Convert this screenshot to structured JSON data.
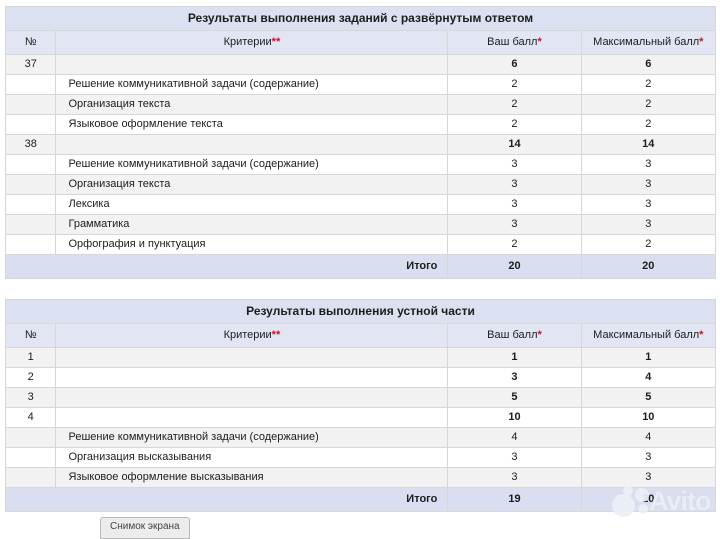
{
  "colors": {
    "title_bg": "#dce1f1",
    "header_bg": "#e2e5f3",
    "total_bg": "#d9def1",
    "stripe_bg": "#f2f2f3",
    "border": "#d7d7d7",
    "required_mark": "#cc1122"
  },
  "tables": [
    {
      "title": "Результаты выполнения заданий с развёрнутым ответом",
      "columns": {
        "num": "№",
        "criteria": "Критерии",
        "criteria_mark": "**",
        "your_score": "Ваш балл",
        "your_score_mark": "*",
        "max_score": "Максимальный балл",
        "max_score_mark": "*"
      },
      "rows": [
        {
          "num": "37",
          "criteria": "",
          "your": "6",
          "max": "6",
          "main": true
        },
        {
          "num": "",
          "criteria": "Решение коммуникативной задачи (содержание)",
          "your": "2",
          "max": "2",
          "main": false
        },
        {
          "num": "",
          "criteria": "Организация текста",
          "your": "2",
          "max": "2",
          "main": false
        },
        {
          "num": "",
          "criteria": "Языковое оформление текста",
          "your": "2",
          "max": "2",
          "main": false
        },
        {
          "num": "38",
          "criteria": "",
          "your": "14",
          "max": "14",
          "main": true
        },
        {
          "num": "",
          "criteria": "Решение коммуникативной задачи (содержание)",
          "your": "3",
          "max": "3",
          "main": false
        },
        {
          "num": "",
          "criteria": "Организация текста",
          "your": "3",
          "max": "3",
          "main": false
        },
        {
          "num": "",
          "criteria": "Лексика",
          "your": "3",
          "max": "3",
          "main": false
        },
        {
          "num": "",
          "criteria": "Грамматика",
          "your": "3",
          "max": "3",
          "main": false
        },
        {
          "num": "",
          "criteria": "Орфография и пунктуация",
          "your": "2",
          "max": "2",
          "main": false
        }
      ],
      "total": {
        "label": "Итого",
        "your": "20",
        "max": "20"
      }
    },
    {
      "title": "Результаты выполнения устной части",
      "columns": {
        "num": "№",
        "criteria": "Критерии",
        "criteria_mark": "**",
        "your_score": "Ваш балл",
        "your_score_mark": "*",
        "max_score": "Максимальный балл",
        "max_score_mark": "*"
      },
      "rows": [
        {
          "num": "1",
          "criteria": "",
          "your": "1",
          "max": "1",
          "main": true
        },
        {
          "num": "2",
          "criteria": "",
          "your": "3",
          "max": "4",
          "main": true
        },
        {
          "num": "3",
          "criteria": "",
          "your": "5",
          "max": "5",
          "main": true
        },
        {
          "num": "4",
          "criteria": "",
          "your": "10",
          "max": "10",
          "main": true
        },
        {
          "num": "",
          "criteria": "Решение коммуникативной задачи (содержание)",
          "your": "4",
          "max": "4",
          "main": false
        },
        {
          "num": "",
          "criteria": "Организация высказывания",
          "your": "3",
          "max": "3",
          "main": false
        },
        {
          "num": "",
          "criteria": "Языковое оформление высказывания",
          "your": "3",
          "max": "3",
          "main": false
        }
      ],
      "total": {
        "label": "Итого",
        "your": "19",
        "max": "20"
      }
    }
  ],
  "watermark": {
    "text": "Avito"
  },
  "tooltip": {
    "text": "Снимок экрана"
  }
}
